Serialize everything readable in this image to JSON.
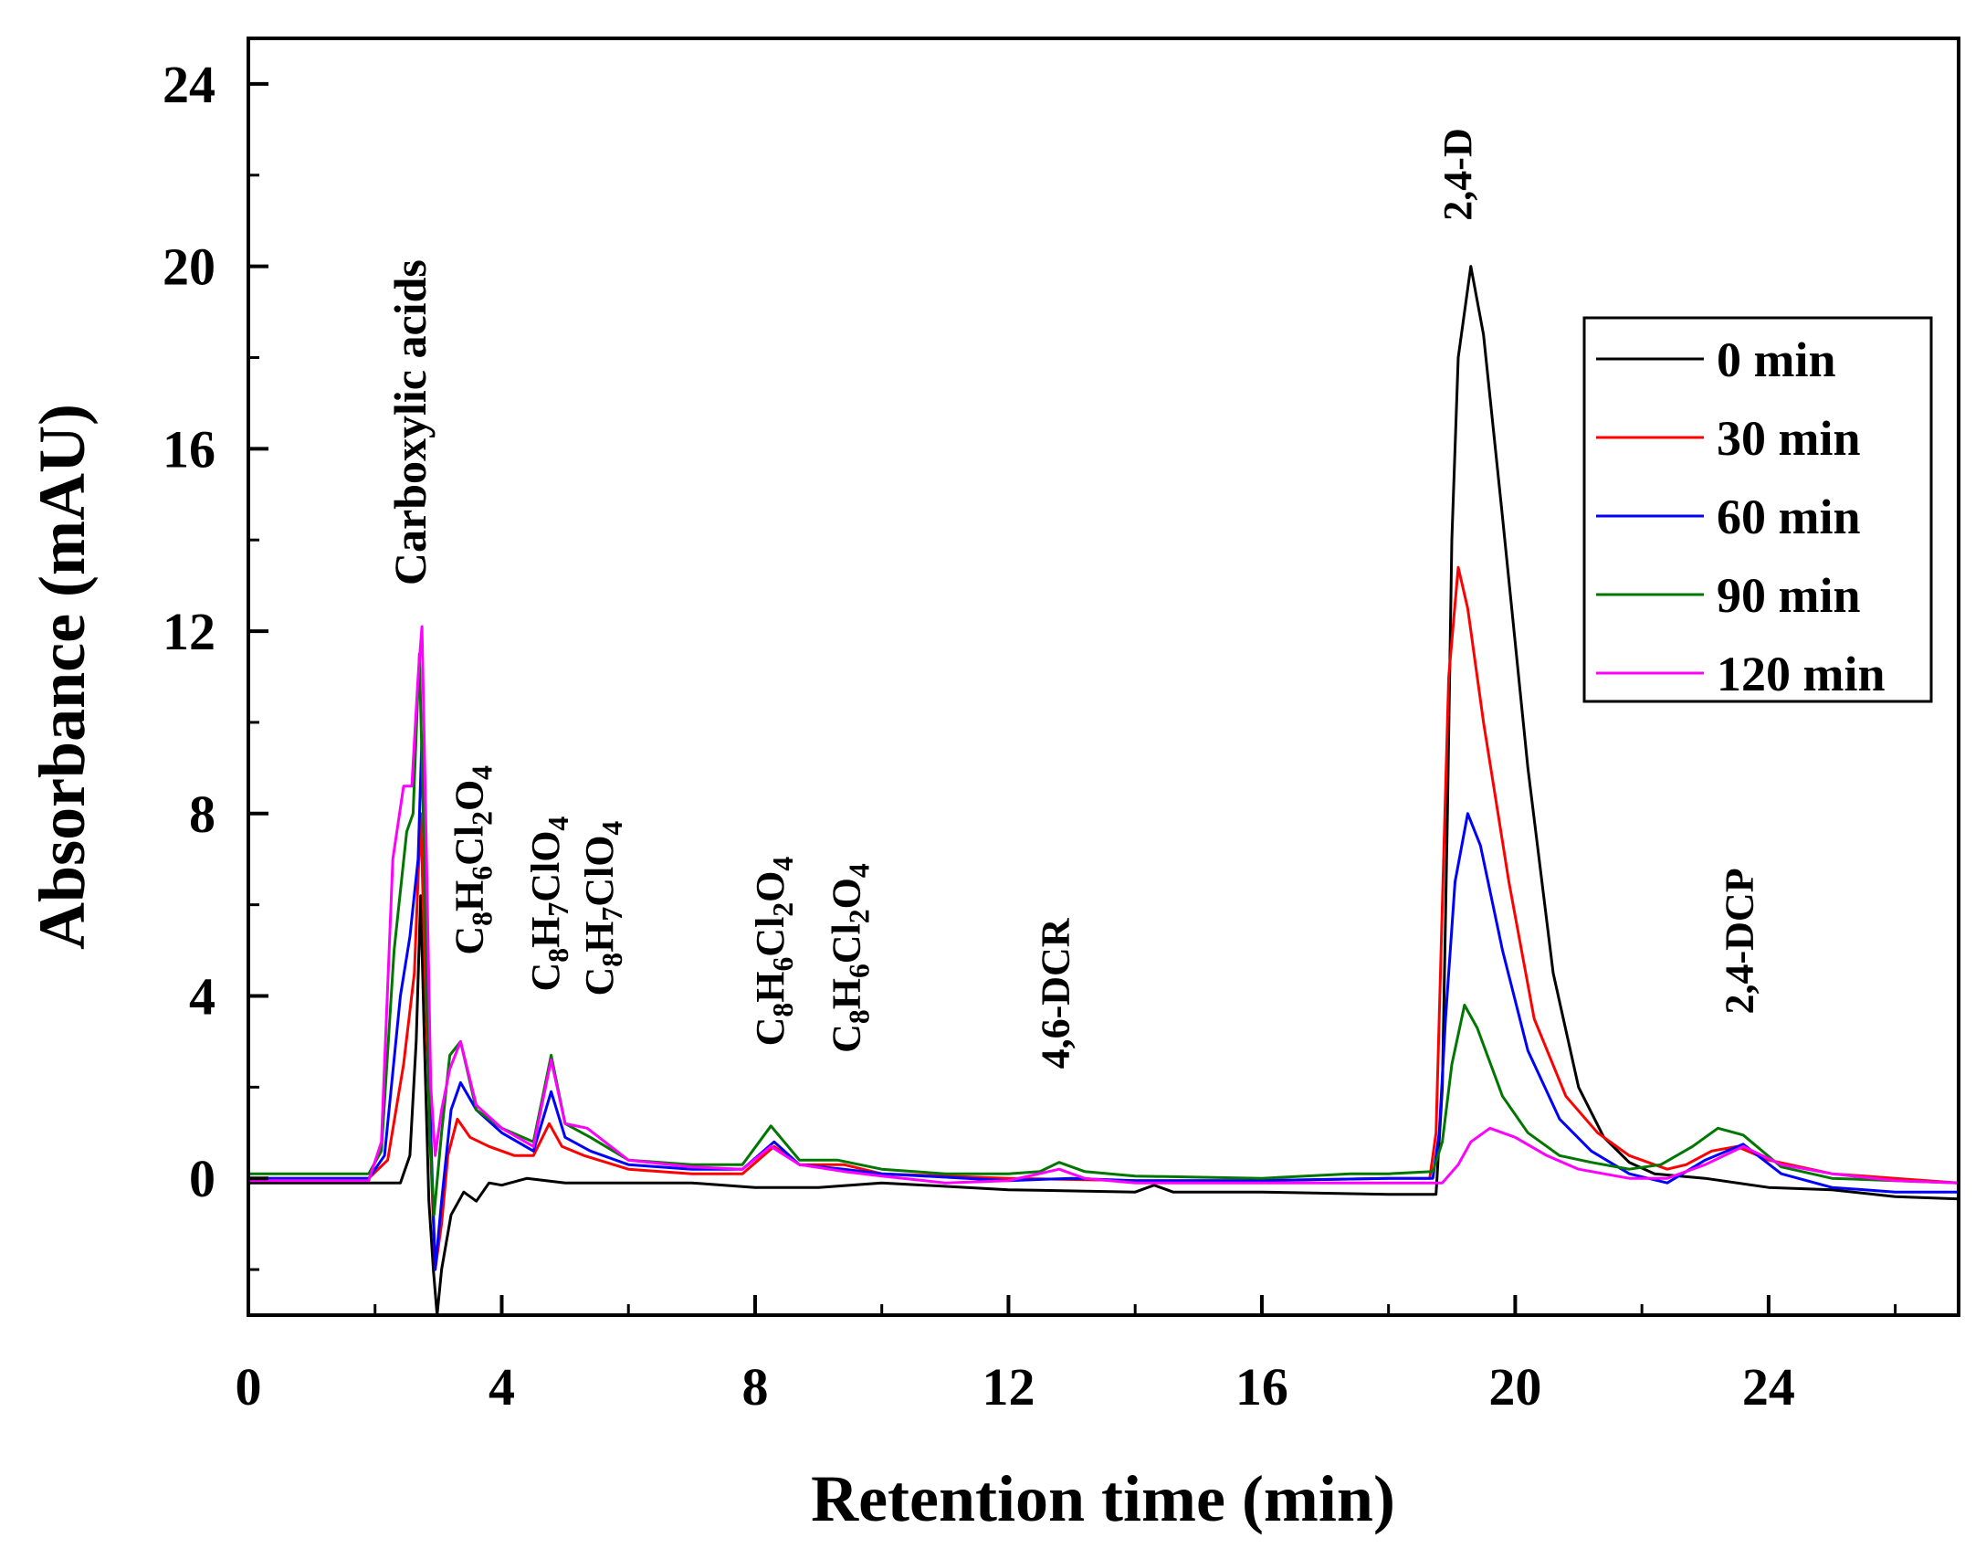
{
  "chart_data": {
    "type": "line",
    "title": "",
    "xlabel": "Retention time (min)",
    "ylabel": "Absorbance (mAU)",
    "xlim": [
      0,
      27
    ],
    "ylim": [
      -3,
      25
    ],
    "xticks": [
      0,
      4,
      8,
      12,
      16,
      20,
      24
    ],
    "yticks": [
      0,
      4,
      8,
      12,
      16,
      20,
      24
    ],
    "xtick_labels": [
      "0",
      "4",
      "8",
      "12",
      "16",
      "20",
      "24"
    ],
    "ytick_labels": [
      "0",
      "4",
      "8",
      "12",
      "16",
      "20",
      "24"
    ],
    "grid": false,
    "legend_position": "top-right",
    "series": [
      {
        "name": "0 min",
        "color": "#000000",
        "points": [
          [
            0,
            -0.1
          ],
          [
            1.8,
            -0.1
          ],
          [
            2.4,
            -0.1
          ],
          [
            2.55,
            0.5
          ],
          [
            2.65,
            3.0
          ],
          [
            2.72,
            6.2
          ],
          [
            2.78,
            3.0
          ],
          [
            2.85,
            -0.5
          ],
          [
            2.92,
            -2.0
          ],
          [
            2.98,
            -3.0
          ],
          [
            3.05,
            -2.0
          ],
          [
            3.2,
            -0.8
          ],
          [
            3.4,
            -0.3
          ],
          [
            3.6,
            -0.5
          ],
          [
            3.8,
            -0.1
          ],
          [
            4.0,
            -0.15
          ],
          [
            4.4,
            0.0
          ],
          [
            5.0,
            -0.1
          ],
          [
            7.0,
            -0.1
          ],
          [
            8.0,
            -0.2
          ],
          [
            9.0,
            -0.2
          ],
          [
            10.0,
            -0.1
          ],
          [
            12.0,
            -0.25
          ],
          [
            14.0,
            -0.3
          ],
          [
            14.3,
            -0.15
          ],
          [
            14.6,
            -0.3
          ],
          [
            16.0,
            -0.3
          ],
          [
            18.0,
            -0.35
          ],
          [
            18.75,
            -0.35
          ],
          [
            18.85,
            2.0
          ],
          [
            18.93,
            8.0
          ],
          [
            19.0,
            14.0
          ],
          [
            19.1,
            18.0
          ],
          [
            19.3,
            20.0
          ],
          [
            19.5,
            18.5
          ],
          [
            19.8,
            14.5
          ],
          [
            20.2,
            9.0
          ],
          [
            20.6,
            4.5
          ],
          [
            21.0,
            2.0
          ],
          [
            21.4,
            0.9
          ],
          [
            21.8,
            0.35
          ],
          [
            22.2,
            0.1
          ],
          [
            23.0,
            0.0
          ],
          [
            24.0,
            -0.2
          ],
          [
            25.0,
            -0.25
          ],
          [
            26.0,
            -0.4
          ],
          [
            27.0,
            -0.45
          ]
        ]
      },
      {
        "name": "30 min",
        "color": "#ff0000",
        "points": [
          [
            0,
            0.0
          ],
          [
            1.9,
            0.0
          ],
          [
            2.2,
            0.4
          ],
          [
            2.45,
            2.5
          ],
          [
            2.62,
            4.5
          ],
          [
            2.72,
            8.0
          ],
          [
            2.8,
            4.0
          ],
          [
            2.88,
            0.5
          ],
          [
            2.95,
            -2.0
          ],
          [
            3.05,
            -1.0
          ],
          [
            3.15,
            0.5
          ],
          [
            3.3,
            1.3
          ],
          [
            3.5,
            0.9
          ],
          [
            3.8,
            0.7
          ],
          [
            4.2,
            0.5
          ],
          [
            4.5,
            0.5
          ],
          [
            4.75,
            1.2
          ],
          [
            4.95,
            0.7
          ],
          [
            5.3,
            0.5
          ],
          [
            6.0,
            0.2
          ],
          [
            7.0,
            0.1
          ],
          [
            7.8,
            0.1
          ],
          [
            8.3,
            0.7
          ],
          [
            8.7,
            0.3
          ],
          [
            9.4,
            0.3
          ],
          [
            10.0,
            0.1
          ],
          [
            12.0,
            0.0
          ],
          [
            14.0,
            -0.05
          ],
          [
            16.0,
            -0.05
          ],
          [
            18.0,
            0.0
          ],
          [
            18.65,
            0.0
          ],
          [
            18.75,
            1.0
          ],
          [
            18.85,
            6.0
          ],
          [
            18.95,
            11.0
          ],
          [
            19.1,
            13.4
          ],
          [
            19.25,
            12.5
          ],
          [
            19.5,
            10.0
          ],
          [
            19.9,
            6.5
          ],
          [
            20.3,
            3.5
          ],
          [
            20.8,
            1.8
          ],
          [
            21.3,
            1.0
          ],
          [
            21.8,
            0.5
          ],
          [
            22.4,
            0.2
          ],
          [
            22.7,
            0.3
          ],
          [
            23.1,
            0.6
          ],
          [
            23.5,
            0.7
          ],
          [
            24.0,
            0.4
          ],
          [
            25.0,
            0.1
          ],
          [
            26.0,
            0.0
          ],
          [
            27.0,
            -0.1
          ]
        ]
      },
      {
        "name": "60 min",
        "color": "#0000ff",
        "points": [
          [
            0,
            0.0
          ],
          [
            1.9,
            0.0
          ],
          [
            2.15,
            0.5
          ],
          [
            2.4,
            4.0
          ],
          [
            2.55,
            5.3
          ],
          [
            2.68,
            7.0
          ],
          [
            2.74,
            9.7
          ],
          [
            2.8,
            6.0
          ],
          [
            2.88,
            1.0
          ],
          [
            2.95,
            -2.0
          ],
          [
            3.05,
            -0.5
          ],
          [
            3.2,
            1.5
          ],
          [
            3.35,
            2.1
          ],
          [
            3.6,
            1.5
          ],
          [
            4.0,
            1.0
          ],
          [
            4.5,
            0.6
          ],
          [
            4.78,
            1.9
          ],
          [
            5.0,
            0.9
          ],
          [
            5.4,
            0.6
          ],
          [
            6.0,
            0.3
          ],
          [
            7.0,
            0.2
          ],
          [
            7.8,
            0.2
          ],
          [
            8.3,
            0.8
          ],
          [
            8.7,
            0.3
          ],
          [
            9.4,
            0.2
          ],
          [
            10.0,
            0.1
          ],
          [
            12.0,
            -0.05
          ],
          [
            13.0,
            0.0
          ],
          [
            14.0,
            -0.05
          ],
          [
            16.0,
            -0.05
          ],
          [
            18.0,
            0.0
          ],
          [
            18.7,
            0.0
          ],
          [
            18.8,
            1.0
          ],
          [
            18.9,
            3.5
          ],
          [
            19.05,
            6.5
          ],
          [
            19.25,
            8.0
          ],
          [
            19.45,
            7.3
          ],
          [
            19.8,
            5.0
          ],
          [
            20.2,
            2.8
          ],
          [
            20.7,
            1.3
          ],
          [
            21.2,
            0.6
          ],
          [
            21.8,
            0.1
          ],
          [
            22.4,
            -0.1
          ],
          [
            23.0,
            0.4
          ],
          [
            23.6,
            0.75
          ],
          [
            24.2,
            0.1
          ],
          [
            25.0,
            -0.2
          ],
          [
            26.0,
            -0.3
          ],
          [
            27.0,
            -0.3
          ]
        ]
      },
      {
        "name": "90 min",
        "color": "#007700",
        "points": [
          [
            0,
            0.1
          ],
          [
            1.9,
            0.1
          ],
          [
            2.1,
            0.6
          ],
          [
            2.3,
            5.0
          ],
          [
            2.5,
            7.6
          ],
          [
            2.6,
            8.0
          ],
          [
            2.7,
            11.5
          ],
          [
            2.78,
            7.0
          ],
          [
            2.86,
            1.0
          ],
          [
            2.93,
            -0.8
          ],
          [
            3.05,
            1.0
          ],
          [
            3.18,
            2.7
          ],
          [
            3.35,
            3.0
          ],
          [
            3.6,
            1.5
          ],
          [
            4.0,
            1.1
          ],
          [
            4.5,
            0.8
          ],
          [
            4.78,
            2.7
          ],
          [
            5.0,
            1.2
          ],
          [
            5.4,
            0.9
          ],
          [
            6.0,
            0.4
          ],
          [
            6.5,
            0.35
          ],
          [
            7.0,
            0.3
          ],
          [
            7.8,
            0.3
          ],
          [
            8.25,
            1.15
          ],
          [
            8.7,
            0.4
          ],
          [
            9.3,
            0.4
          ],
          [
            10.0,
            0.2
          ],
          [
            11.0,
            0.1
          ],
          [
            12.0,
            0.1
          ],
          [
            12.5,
            0.15
          ],
          [
            12.8,
            0.35
          ],
          [
            13.2,
            0.15
          ],
          [
            14.0,
            0.05
          ],
          [
            16.0,
            0.0
          ],
          [
            17.4,
            0.1
          ],
          [
            18.0,
            0.1
          ],
          [
            18.7,
            0.15
          ],
          [
            18.85,
            0.8
          ],
          [
            19.0,
            2.5
          ],
          [
            19.2,
            3.8
          ],
          [
            19.4,
            3.3
          ],
          [
            19.8,
            1.8
          ],
          [
            20.2,
            1.0
          ],
          [
            20.7,
            0.5
          ],
          [
            21.2,
            0.35
          ],
          [
            21.8,
            0.2
          ],
          [
            22.3,
            0.3
          ],
          [
            22.8,
            0.7
          ],
          [
            23.2,
            1.1
          ],
          [
            23.6,
            0.95
          ],
          [
            24.2,
            0.25
          ],
          [
            25.0,
            0.0
          ],
          [
            26.0,
            -0.05
          ],
          [
            27.0,
            -0.1
          ]
        ]
      },
      {
        "name": "120 min",
        "color": "#ff00ff",
        "points": [
          [
            0,
            -0.05
          ],
          [
            1.9,
            -0.05
          ],
          [
            2.1,
            0.8
          ],
          [
            2.28,
            7.0
          ],
          [
            2.45,
            8.6
          ],
          [
            2.58,
            8.6
          ],
          [
            2.68,
            11.0
          ],
          [
            2.74,
            12.1
          ],
          [
            2.8,
            8.0
          ],
          [
            2.88,
            2.0
          ],
          [
            2.95,
            0.5
          ],
          [
            3.05,
            1.5
          ],
          [
            3.18,
            2.4
          ],
          [
            3.35,
            3.0
          ],
          [
            3.6,
            1.6
          ],
          [
            4.0,
            1.1
          ],
          [
            4.5,
            0.7
          ],
          [
            4.78,
            2.6
          ],
          [
            5.0,
            1.2
          ],
          [
            5.35,
            1.1
          ],
          [
            6.0,
            0.4
          ],
          [
            7.0,
            0.25
          ],
          [
            7.8,
            0.2
          ],
          [
            8.25,
            0.7
          ],
          [
            8.7,
            0.3
          ],
          [
            9.4,
            0.15
          ],
          [
            10.0,
            0.05
          ],
          [
            11.0,
            -0.1
          ],
          [
            12.0,
            -0.05
          ],
          [
            12.8,
            0.2
          ],
          [
            13.2,
            0.0
          ],
          [
            14.0,
            -0.1
          ],
          [
            16.0,
            -0.1
          ],
          [
            18.0,
            -0.1
          ],
          [
            18.85,
            -0.1
          ],
          [
            19.1,
            0.3
          ],
          [
            19.3,
            0.8
          ],
          [
            19.6,
            1.1
          ],
          [
            20.0,
            0.9
          ],
          [
            20.5,
            0.5
          ],
          [
            21.0,
            0.2
          ],
          [
            21.8,
            0.0
          ],
          [
            22.4,
            0.0
          ],
          [
            23.0,
            0.3
          ],
          [
            23.6,
            0.7
          ],
          [
            24.2,
            0.3
          ],
          [
            25.0,
            0.1
          ],
          [
            26.0,
            -0.05
          ],
          [
            27.0,
            -0.1
          ]
        ]
      }
    ],
    "annotations": [
      {
        "id": "carboxylic",
        "parts": [
          {
            "t": "Carboxylic acids"
          }
        ],
        "x": 2.8,
        "y": 13.0
      },
      {
        "id": "a1",
        "parts": [
          {
            "t": "C"
          },
          {
            "t": "8",
            "sub": true
          },
          {
            "t": "H"
          },
          {
            "t": "6",
            "sub": true
          },
          {
            "t": "Cl"
          },
          {
            "t": "2",
            "sub": true
          },
          {
            "t": "O"
          },
          {
            "t": "4",
            "sub": true
          }
        ],
        "x": 3.7,
        "y": 4.9
      },
      {
        "id": "a2",
        "parts": [
          {
            "t": "C"
          },
          {
            "t": "8",
            "sub": true
          },
          {
            "t": "H"
          },
          {
            "t": "7",
            "sub": true
          },
          {
            "t": "ClO"
          },
          {
            "t": "4",
            "sub": true
          }
        ],
        "x": 4.9,
        "y": 4.1
      },
      {
        "id": "a3",
        "parts": [
          {
            "t": "C"
          },
          {
            "t": "8",
            "sub": true
          },
          {
            "t": "H"
          },
          {
            "t": "7",
            "sub": true
          },
          {
            "t": "ClO"
          },
          {
            "t": "4",
            "sub": true
          }
        ],
        "x": 5.75,
        "y": 4.0
      },
      {
        "id": "a4",
        "parts": [
          {
            "t": "C"
          },
          {
            "t": "8",
            "sub": true
          },
          {
            "t": "H"
          },
          {
            "t": "6",
            "sub": true
          },
          {
            "t": "Cl"
          },
          {
            "t": "2",
            "sub": true
          },
          {
            "t": "O"
          },
          {
            "t": "4",
            "sub": true
          }
        ],
        "x": 8.45,
        "y": 2.9
      },
      {
        "id": "a5",
        "parts": [
          {
            "t": "C"
          },
          {
            "t": "8",
            "sub": true
          },
          {
            "t": "H"
          },
          {
            "t": "6",
            "sub": true
          },
          {
            "t": "Cl"
          },
          {
            "t": "2",
            "sub": true
          },
          {
            "t": "O"
          },
          {
            "t": "4",
            "sub": true
          }
        ],
        "x": 9.65,
        "y": 2.75
      },
      {
        "id": "dcr",
        "parts": [
          {
            "t": "4,6-DCR"
          }
        ],
        "x": 12.95,
        "y": 2.4
      },
      {
        "id": "d24",
        "parts": [
          {
            "t": "2,4-D"
          }
        ],
        "x": 19.3,
        "y": 21.0
      },
      {
        "id": "dcp",
        "parts": [
          {
            "t": "2,4-DCP"
          }
        ],
        "x": 23.75,
        "y": 3.6
      }
    ]
  }
}
